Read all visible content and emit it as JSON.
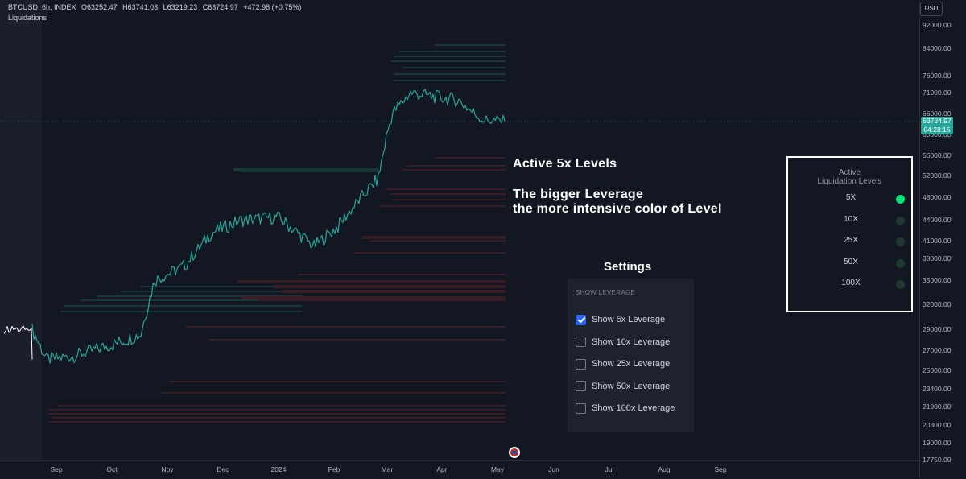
{
  "header": {
    "symbol": "BTCUSD, 6h, INDEX",
    "open": "O63252.47",
    "high": "H63741.03",
    "low": "L63219.23",
    "close": "C63724.97",
    "change": "+472.98 (+0.75%)",
    "indicator": "Liquidations"
  },
  "price_axis": {
    "currency": "USD",
    "ticks": [
      "92000.00",
      "84000.00",
      "76000.00",
      "71000.00",
      "66000.00",
      "60000.00",
      "56000.00",
      "52000.00",
      "48000.00",
      "44000.00",
      "41000.00",
      "38000.00",
      "35000.00",
      "32000.00",
      "29000.00",
      "27000.00",
      "25000.00",
      "23400.00",
      "21900.00",
      "20300.00",
      "19000.00",
      "17750.00"
    ],
    "last_price": "63724.97",
    "countdown": "04:28:15"
  },
  "time_axis": {
    "ticks": [
      "Sep",
      "Oct",
      "Nov",
      "Dec",
      "2024",
      "Feb",
      "Mar",
      "Apr",
      "May",
      "Jun",
      "Jul",
      "Aug",
      "Sep"
    ]
  },
  "annotations": {
    "active_levels": "Active 5x Levels",
    "line1": "The bigger Leverage",
    "line2": "the more intensive color of Level"
  },
  "settings": {
    "title": "Settings",
    "section": "SHOW LEVERAGE",
    "options": [
      {
        "label": "Show 5x Leverage",
        "checked": true
      },
      {
        "label": "Show 10x Leverage",
        "checked": false
      },
      {
        "label": "Show 25x Leverage",
        "checked": false
      },
      {
        "label": "Show 50x Leverage",
        "checked": false
      },
      {
        "label": "Show 100x Leverage",
        "checked": false
      }
    ]
  },
  "liquidation_panel": {
    "title_line1": "Active",
    "title_line2": "Liquidation Levels",
    "levels": [
      {
        "label": "5X",
        "active": true
      },
      {
        "label": "10X",
        "active": false
      },
      {
        "label": "25X",
        "active": false
      },
      {
        "label": "50X",
        "active": false
      },
      {
        "label": "100X",
        "active": false
      }
    ]
  },
  "colors": {
    "background": "#131722",
    "candle_up": "#26a69a",
    "line_green": "#00e676",
    "level_green": "#1c3b3a",
    "level_red": "#3d1e26",
    "active_dot": "#00e676",
    "inactive_dot": "#1f3a2c",
    "checkbox_on": "#2962ff"
  },
  "chart_data": {
    "type": "line",
    "series": [
      {
        "x": [
          "Aug",
          "Sep",
          "Sep",
          "Oct",
          "Oct",
          "Nov",
          "Nov",
          "Dec",
          "Dec",
          "2024",
          "Jan",
          "Feb",
          "Feb",
          "Mar",
          "Mar",
          "Apr",
          "Apr",
          "May"
        ],
        "values": [
          29000,
          26000,
          26300,
          27500,
          28500,
          35000,
          37000,
          42000,
          44000,
          44500,
          40000,
          43000,
          51500,
          66000,
          71000,
          69000,
          64000,
          63724.97
        ]
      }
    ],
    "ylim": [
      17750,
      92000
    ]
  }
}
